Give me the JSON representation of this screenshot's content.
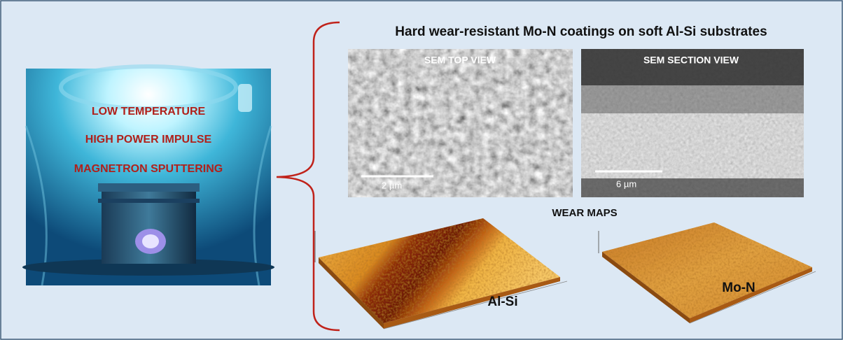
{
  "left_panel": {
    "lines": [
      "LOW TEMPERATURE",
      "HIGH POWER IMPULSE",
      "MAGNETRON SPUTTERING"
    ]
  },
  "title": "Hard wear-resistant Mo-N coatings on soft Al-Si substrates",
  "sem": [
    {
      "label": "SEM TOP VIEW",
      "scale_bar": "2 µm"
    },
    {
      "label": "SEM SECTION VIEW",
      "scale_bar": "6 µm"
    }
  ],
  "wear_maps": {
    "title": "WEAR MAPS",
    "maps": [
      {
        "label": "Al-Si"
      },
      {
        "label": "Mo-N"
      }
    ]
  }
}
